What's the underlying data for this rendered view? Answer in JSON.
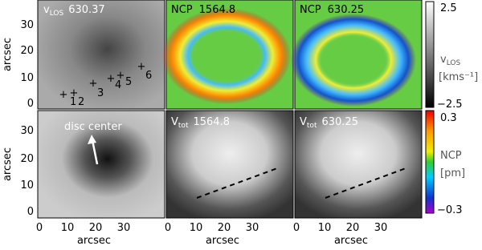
{
  "panels": [
    {
      "label": {
        "main": "v",
        "sub": "LOS",
        "text": "630.37"
      }
    },
    {
      "label": {
        "main": "NCP",
        "text": "1564.8"
      }
    },
    {
      "label": {
        "main": "NCP",
        "text": "630.25"
      }
    },
    {
      "annotation": "disc center"
    },
    {
      "label": {
        "main": "V",
        "sub": "tot",
        "text": "1564.8"
      }
    },
    {
      "label": {
        "main": "V",
        "sub": "tot",
        "text": "630.25"
      }
    }
  ],
  "markers": [
    "1",
    "2",
    "3",
    "4",
    "5",
    "6"
  ],
  "axes": {
    "x_label": "arcsec",
    "y_label": "arcsec",
    "x_ticks": [
      "0",
      "10",
      "20",
      "30"
    ],
    "y_ticks": [
      "0",
      "10",
      "20",
      "30"
    ]
  },
  "colorbars": [
    {
      "top": "2.5",
      "label_main": "v",
      "label_sub": "LOS",
      "unit": "[kms⁻¹]",
      "bottom": "−2.5"
    },
    {
      "top": "0.3",
      "label_main": "NCP",
      "unit": "[pm]",
      "bottom": "−0.3"
    }
  ]
}
